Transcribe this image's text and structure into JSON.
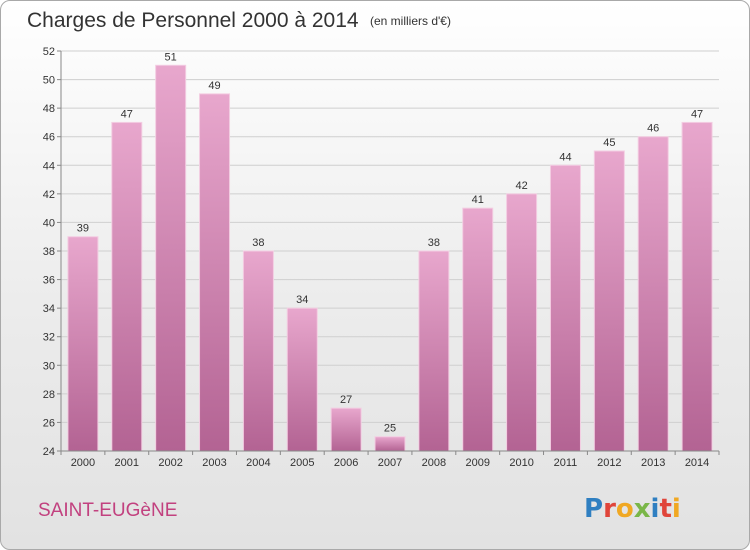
{
  "header": {
    "title": "Charges de Personnel 2000 à 2014",
    "subtitle": "(en milliers d'€)"
  },
  "footer": {
    "location": "SAINT-EUGèNE",
    "logo_letters": [
      "P",
      "r",
      "o",
      "x",
      "i",
      "t",
      "i"
    ],
    "logo_colors": [
      "#2f7fc1",
      "#e0453a",
      "#f0a823",
      "#7ab648",
      "#2f7fc1",
      "#e0453a",
      "#f0a823"
    ]
  },
  "colors": {
    "bar_light": "#e8a7cd",
    "bar_dark": "#b36393",
    "grid": "#cfcfcf",
    "axis": "#888888"
  },
  "chart_data": {
    "type": "bar",
    "categories": [
      "2000",
      "2001",
      "2002",
      "2003",
      "2004",
      "2005",
      "2006",
      "2007",
      "2008",
      "2009",
      "2010",
      "2011",
      "2012",
      "2013",
      "2014"
    ],
    "values": [
      39,
      47,
      51,
      49,
      38,
      34,
      27,
      25,
      38,
      41,
      42,
      44,
      45,
      46,
      47
    ],
    "title": "Charges de Personnel 2000 à 2014",
    "subtitle": "(en milliers d'€)",
    "ylim": [
      24,
      52
    ],
    "yticks": [
      24,
      26,
      28,
      30,
      32,
      34,
      36,
      38,
      40,
      42,
      44,
      46,
      48,
      50,
      52
    ],
    "grid": true,
    "legend": false
  }
}
